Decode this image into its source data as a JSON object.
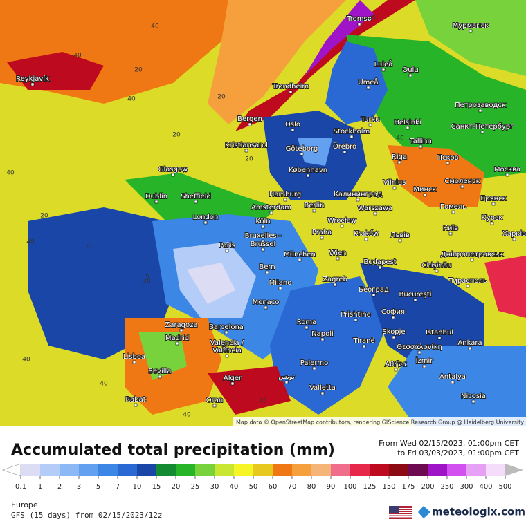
{
  "title": "Accumulated total precipitation (mm)",
  "period": {
    "from": "From Wed 02/15/2023, 01:00pm CET",
    "to": "to Fri 03/03/2023, 01:00pm CET"
  },
  "region": "Europe",
  "model": "GFS (15 days) from 02/15/2023/12z",
  "brand": "meteologix.com",
  "attribution": "Map data © OpenStreetMap contributors, rendering GIScience Research Group @ Heidelberg University",
  "legend": {
    "values": [
      0.1,
      1,
      2,
      3,
      5,
      7,
      10,
      15,
      20,
      25,
      30,
      40,
      50,
      60,
      70,
      80,
      90,
      100,
      125,
      150,
      175,
      200,
      250,
      300,
      400,
      500
    ],
    "colors": [
      "#dcdcf5",
      "#b4cdf8",
      "#8cb9f5",
      "#64a0f0",
      "#3c87e6",
      "#2a68d4",
      "#1a46a8",
      "#148a32",
      "#28b428",
      "#78d23c",
      "#c8e632",
      "#f5f528",
      "#e6c81e",
      "#f07814",
      "#f5a03c",
      "#f5b478",
      "#f06e8c",
      "#e6284b",
      "#be0a1e",
      "#8c0a14",
      "#6e0a50",
      "#a014c8",
      "#d250f0",
      "#e6a0f5",
      "#f5dcfa"
    ]
  },
  "map": {
    "cities": [
      "Reykjavík",
      "Tromsø",
      "Мурманск",
      "Luleå",
      "Oulu",
      "Umeå",
      "Trondheim",
      "Петрозаводск",
      "Bergen",
      "Oslo",
      "Stockholm",
      "Turku",
      "Helsinki",
      "Санкт-Петербург",
      "Kristiansand",
      "Göteborg",
      "Örebro",
      "Tallinn",
      "Glasgow",
      "København",
      "Riga",
      "Псков",
      "Москва",
      "Dublin",
      "Sheffield",
      "Hamburg",
      "Vilnius",
      "Минск",
      "Смоленск",
      "Калининград",
      "Amsterdam",
      "Berlin",
      "Warszawa",
      "Гомель",
      "Брянск",
      "London",
      "Köln",
      "Wrocław",
      "Курск",
      "Київ",
      "Bruxelles -",
      "Brussel",
      "Praha",
      "Kraków",
      "Львів",
      "Харків",
      "Paris",
      "München",
      "Wien",
      "Дніпропетровськ",
      "Budapest",
      "Chișinău",
      "Bern",
      "Milano",
      "Zagreb",
      "Тирасполь",
      "Београд",
      "București",
      "Monaco",
      "Prishtine",
      "София",
      "Roma",
      "Zaragoza",
      "Barcelona",
      "Skopje",
      "Istanbul",
      "Madrid",
      "Napoli",
      "Tiranë",
      "Θεσσαλονίκη",
      "Ankara",
      "Valencia /",
      "València",
      "Lisboa",
      "İzmir",
      "Αθήνα",
      "Palermo",
      "Sevilla",
      "Alger",
      "تونس",
      "Antalya",
      "Valletta",
      "Nicosia",
      "Rabat",
      "Oran"
    ],
    "contour_labels": [
      "40",
      "40",
      "40",
      "20",
      "40",
      "20",
      "40",
      "20",
      "20",
      "40",
      "20",
      "5",
      "40",
      "20",
      "40",
      "40",
      "20",
      "20",
      "40"
    ]
  }
}
